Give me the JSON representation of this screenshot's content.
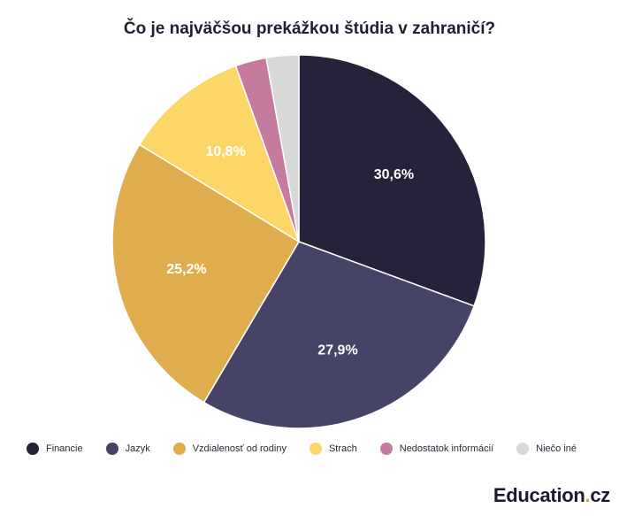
{
  "chart_data": {
    "type": "pie",
    "title": "Čo je najväčšou prekážkou štúdia v zahraničí?",
    "legend_position": "bottom",
    "slices": [
      {
        "label": "Financie",
        "value": 30.6,
        "value_label": "30,6%",
        "color": "#25223a"
      },
      {
        "label": "Jazyk",
        "value": 27.9,
        "value_label": "27,9%",
        "color": "#454466"
      },
      {
        "label": "Vzdialenosť od rodiny",
        "value": 25.2,
        "value_label": "25,2%",
        "color": "#e0ad4e"
      },
      {
        "label": "Strach",
        "value": 10.8,
        "value_label": "10,8%",
        "color": "#fcd767"
      },
      {
        "label": "Nedostatok informácií",
        "value": 2.7,
        "value_label": "",
        "color": "#c47b9e"
      },
      {
        "label": "Niečo iné",
        "value": 2.8,
        "value_label": "",
        "color": "#d8d8d8"
      }
    ]
  },
  "brand": {
    "prefix": "Education",
    "dot": ".",
    "suffix": "cz"
  }
}
